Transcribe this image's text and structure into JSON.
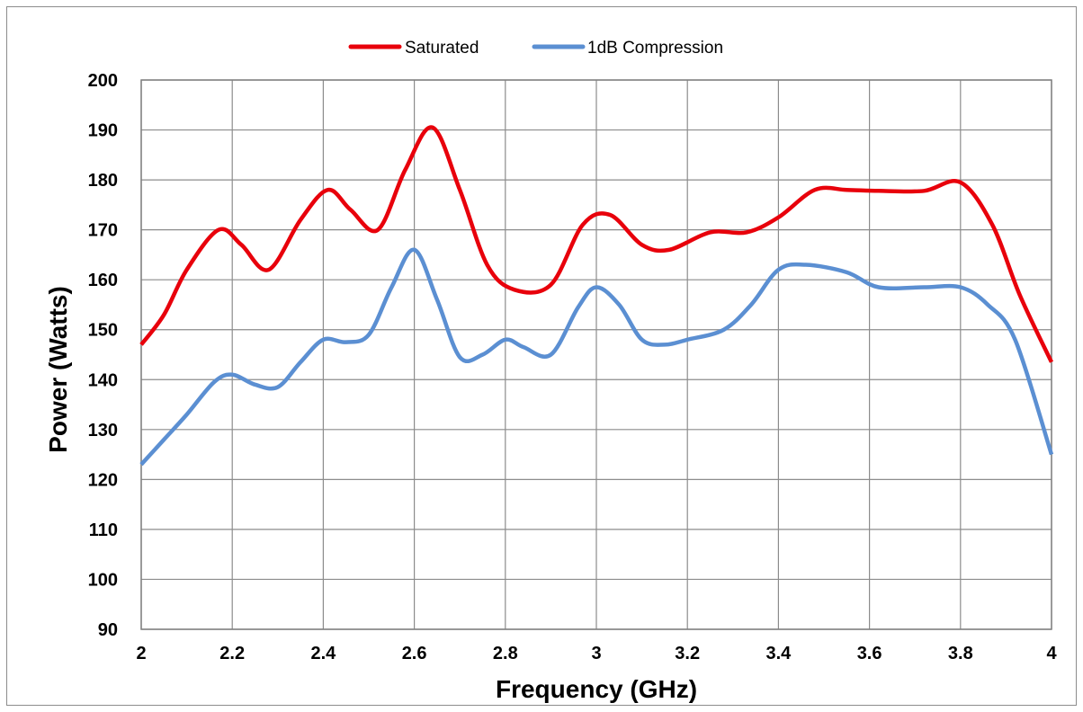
{
  "chart_data": {
    "type": "line",
    "title": "",
    "xlabel": "Frequency (GHz)",
    "ylabel": "Power (Watts)",
    "xlim": [
      2,
      4
    ],
    "ylim": [
      90,
      200
    ],
    "x_ticks": [
      "2",
      "2.2",
      "2.4",
      "2.6",
      "2.8",
      "3",
      "3.2",
      "3.4",
      "3.6",
      "3.8",
      "4"
    ],
    "y_ticks": [
      "90",
      "100",
      "110",
      "120",
      "130",
      "140",
      "150",
      "160",
      "170",
      "180",
      "190",
      "200"
    ],
    "grid": true,
    "legend_position": "top",
    "series": [
      {
        "name": "Saturated",
        "color": "#e8000b",
        "x": [
          2.0,
          2.05,
          2.1,
          2.17,
          2.22,
          2.28,
          2.35,
          2.41,
          2.46,
          2.52,
          2.58,
          2.64,
          2.7,
          2.76,
          2.82,
          2.9,
          2.97,
          3.03,
          3.1,
          3.16,
          3.25,
          3.33,
          3.4,
          3.48,
          3.55,
          3.62,
          3.72,
          3.8,
          3.87,
          3.93,
          4.0
        ],
        "values": [
          147,
          153,
          162,
          170,
          167,
          162,
          172,
          178,
          174,
          170,
          182,
          190.5,
          178,
          163,
          158,
          159,
          171,
          173,
          167,
          166,
          169.5,
          169.5,
          172.5,
          178,
          178,
          177.8,
          177.8,
          179.5,
          171,
          157,
          143.5
        ]
      },
      {
        "name": "1dB Compression",
        "color": "#5b8fd2",
        "x": [
          2.0,
          2.05,
          2.1,
          2.16,
          2.2,
          2.25,
          2.3,
          2.35,
          2.4,
          2.45,
          2.5,
          2.55,
          2.6,
          2.65,
          2.7,
          2.75,
          2.8,
          2.84,
          2.9,
          2.96,
          3.0,
          3.05,
          3.1,
          3.15,
          3.2,
          3.28,
          3.34,
          3.4,
          3.46,
          3.55,
          3.62,
          3.72,
          3.8,
          3.86,
          3.92,
          4.0
        ],
        "values": [
          123,
          128,
          133,
          139.5,
          141,
          139,
          138.5,
          143.5,
          148,
          147.5,
          149,
          158.5,
          166,
          156,
          144.5,
          145,
          148,
          146.5,
          145,
          154.5,
          158.5,
          155,
          148,
          147,
          148,
          150,
          155,
          162,
          163,
          161.5,
          158.5,
          158.5,
          158.5,
          155,
          148,
          125
        ]
      }
    ]
  }
}
